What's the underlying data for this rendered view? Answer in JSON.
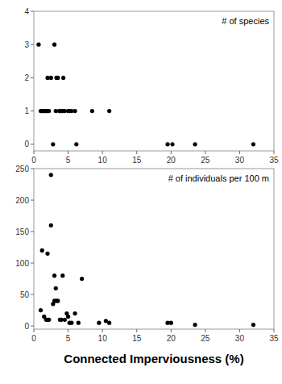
{
  "chart_data": [
    {
      "type": "scatter",
      "annotation": "# of species",
      "x": [
        0.7,
        1.5,
        1.8,
        2.0,
        2.5,
        3.0,
        3.3,
        3.5,
        3.8,
        4.0,
        4.3,
        4.5,
        5.0,
        5.5,
        6.0,
        6.2,
        8.5,
        11.0,
        19.5,
        20.2,
        23.5,
        32.0,
        2.0,
        3.2,
        3.7,
        4.2,
        5.2,
        1.2,
        2.2,
        1.0,
        1.3,
        1.7,
        2.8
      ],
      "values": [
        3,
        1,
        1,
        2,
        2,
        3,
        2,
        2,
        1,
        1,
        2,
        1,
        1,
        1,
        1,
        0,
        1,
        1,
        0,
        0,
        0,
        0,
        1,
        1,
        1,
        1,
        1,
        1,
        1,
        1,
        1,
        1,
        0
      ],
      "xlim": [
        0,
        35
      ],
      "ylim": [
        -0.2,
        4
      ],
      "xticks": [
        0,
        5,
        10,
        15,
        20,
        25,
        30,
        35
      ],
      "yticks": [
        0,
        1,
        2,
        3,
        4
      ],
      "color": "#000000",
      "grid": false
    },
    {
      "type": "scatter",
      "annotation": "# of individuals per 100 m",
      "xlabel": "Connected Imperviousness (%)",
      "x": [
        1.0,
        1.5,
        1.8,
        2.0,
        2.2,
        2.5,
        2.5,
        2.8,
        3.0,
        3.0,
        3.2,
        3.5,
        3.8,
        4.0,
        4.2,
        4.5,
        4.8,
        5.0,
        5.5,
        6.0,
        6.5,
        7.0,
        9.5,
        10.5,
        11.0,
        19.5,
        20.0,
        23.5,
        32.0,
        1.2,
        2.0,
        3.3,
        5.2
      ],
      "values": [
        25,
        15,
        10,
        115,
        10,
        240,
        160,
        35,
        80,
        40,
        60,
        40,
        10,
        10,
        80,
        10,
        20,
        15,
        5,
        20,
        5,
        75,
        5,
        8,
        5,
        5,
        5,
        2,
        2,
        120,
        10,
        40,
        5
      ],
      "xlim": [
        0,
        35
      ],
      "ylim": [
        -5,
        250
      ],
      "xticks": [
        0,
        5,
        10,
        15,
        20,
        25,
        30,
        35
      ],
      "yticks": [
        0,
        50,
        100,
        150,
        200,
        250
      ],
      "color": "#000000",
      "grid": false
    }
  ]
}
